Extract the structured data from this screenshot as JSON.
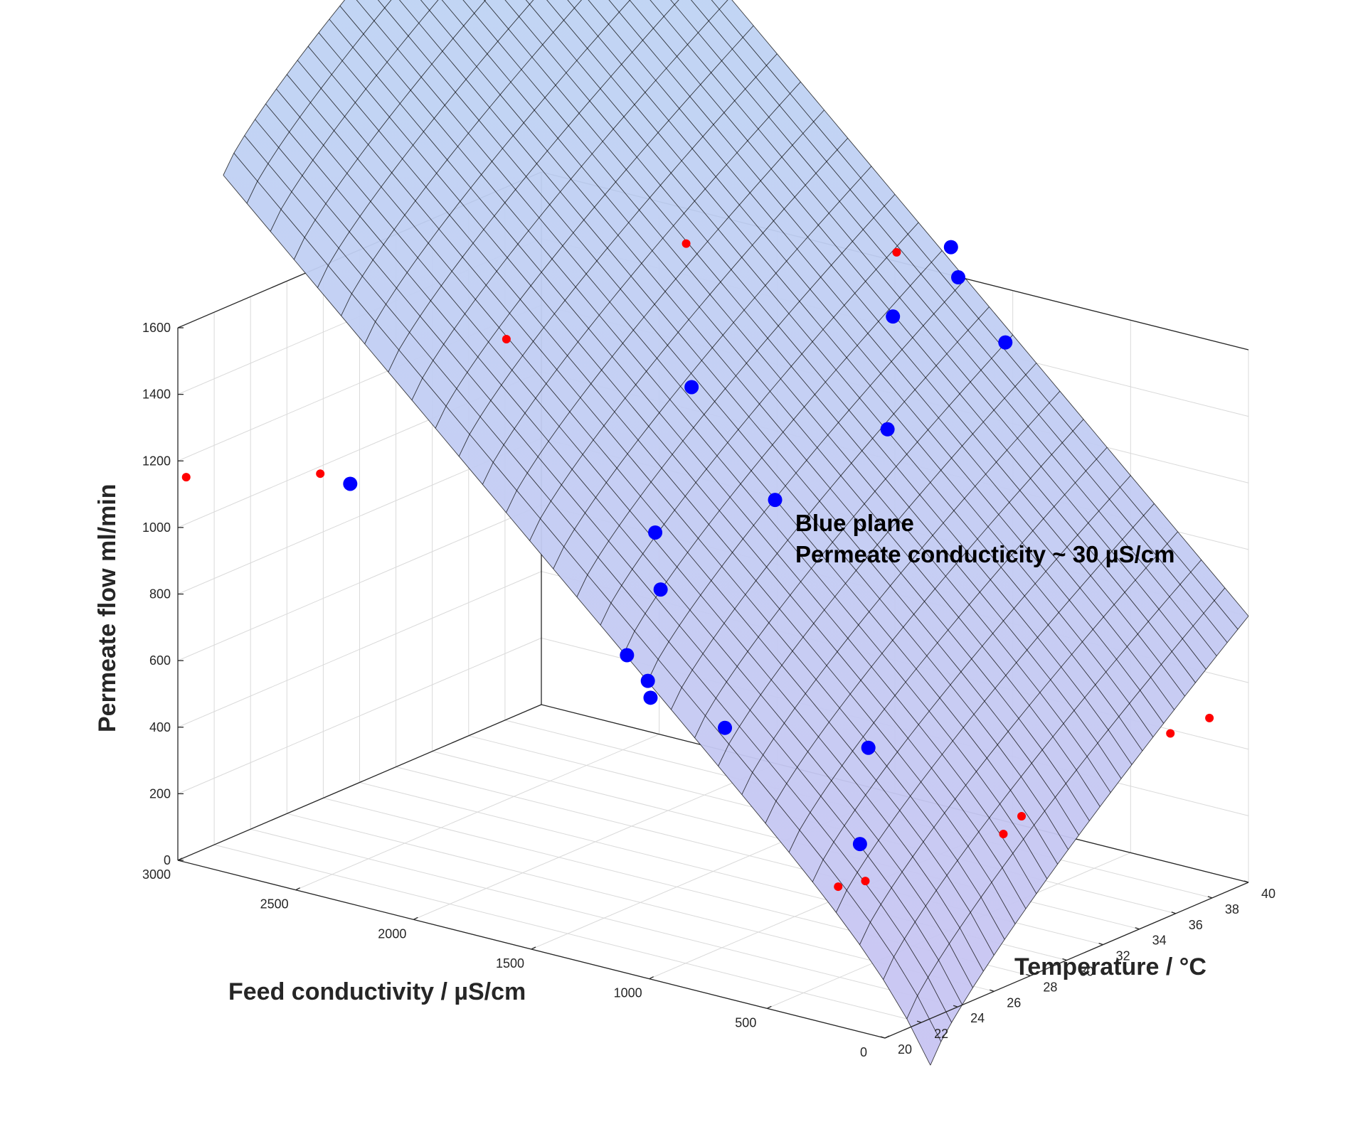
{
  "chart_data": {
    "type": "surface3d",
    "xlabel": "Feed conductivity /  µS/cm",
    "ylabel": "Temperature / °C",
    "zlabel": "Permeate flow ml/min",
    "xlim": [
      0,
      3000
    ],
    "ylim": [
      20,
      40
    ],
    "zlim": [
      0,
      1600
    ],
    "x_ticks": [
      0,
      500,
      1000,
      1500,
      2000,
      2500,
      3000
    ],
    "y_ticks": [
      20,
      22,
      24,
      26,
      28,
      30,
      32,
      34,
      36,
      38,
      40
    ],
    "z_ticks": [
      0,
      200,
      400,
      600,
      800,
      1000,
      1200,
      1400,
      1600
    ],
    "grid": true,
    "annotation": [
      "Blue plane",
      "Permeate conducticity ~ 30 µS/cm"
    ],
    "surface": {
      "name": "Blue plane",
      "x_range": [
        0,
        3000
      ],
      "y_range": [
        22.5,
        40
      ],
      "color_low": "#c8c4f2",
      "color_high": "#bcd6f4",
      "mesh_color": "#000000"
    },
    "series": [
      {
        "marker": "circle-large",
        "color": "#0000ff",
        "points": [
          {
            "x": 800,
            "y": 29,
            "z": 230
          },
          {
            "x": 1150,
            "y": 34,
            "z": 340
          },
          {
            "x": 1450,
            "y": 30,
            "z": 440
          },
          {
            "x": 1650,
            "y": 28.5,
            "z": 530
          },
          {
            "x": 1700,
            "y": 29,
            "z": 560
          },
          {
            "x": 1750,
            "y": 28.5,
            "z": 640
          },
          {
            "x": 1800,
            "y": 31,
            "z": 770
          },
          {
            "x": 2500,
            "y": 23,
            "z": 1150
          },
          {
            "x": 1900,
            "y": 32,
            "z": 900
          },
          {
            "x": 1700,
            "y": 36,
            "z": 940
          },
          {
            "x": 1300,
            "y": 37,
            "z": 1200
          },
          {
            "x": 1900,
            "y": 34,
            "z": 1290
          },
          {
            "x": 800,
            "y": 37,
            "z": 1550
          },
          {
            "x": 1200,
            "y": 36,
            "z": 1580
          },
          {
            "x": 1000,
            "y": 37,
            "z": 1710
          },
          {
            "x": 1000,
            "y": 36.6,
            "z": 1810
          }
        ]
      },
      {
        "marker": "circle-small",
        "color": "#ff0000",
        "points": [
          {
            "x": 800,
            "y": 27.8,
            "z": 130
          },
          {
            "x": 700,
            "y": 28,
            "z": 160
          },
          {
            "x": 500,
            "y": 33,
            "z": 220
          },
          {
            "x": 500,
            "y": 34,
            "z": 250
          },
          {
            "x": 2980,
            "y": 20.2,
            "z": 1150
          },
          {
            "x": 2550,
            "y": 22,
            "z": 1195
          },
          {
            "x": 2300,
            "y": 29,
            "z": 1480
          },
          {
            "x": 2000,
            "y": 35,
            "z": 1680
          },
          {
            "x": 1300,
            "y": 37.5,
            "z": 1720
          },
          {
            "x": 100,
            "y": 37,
            "z": 500
          },
          {
            "x": 50,
            "y": 38.5,
            "z": 520
          }
        ]
      }
    ]
  }
}
